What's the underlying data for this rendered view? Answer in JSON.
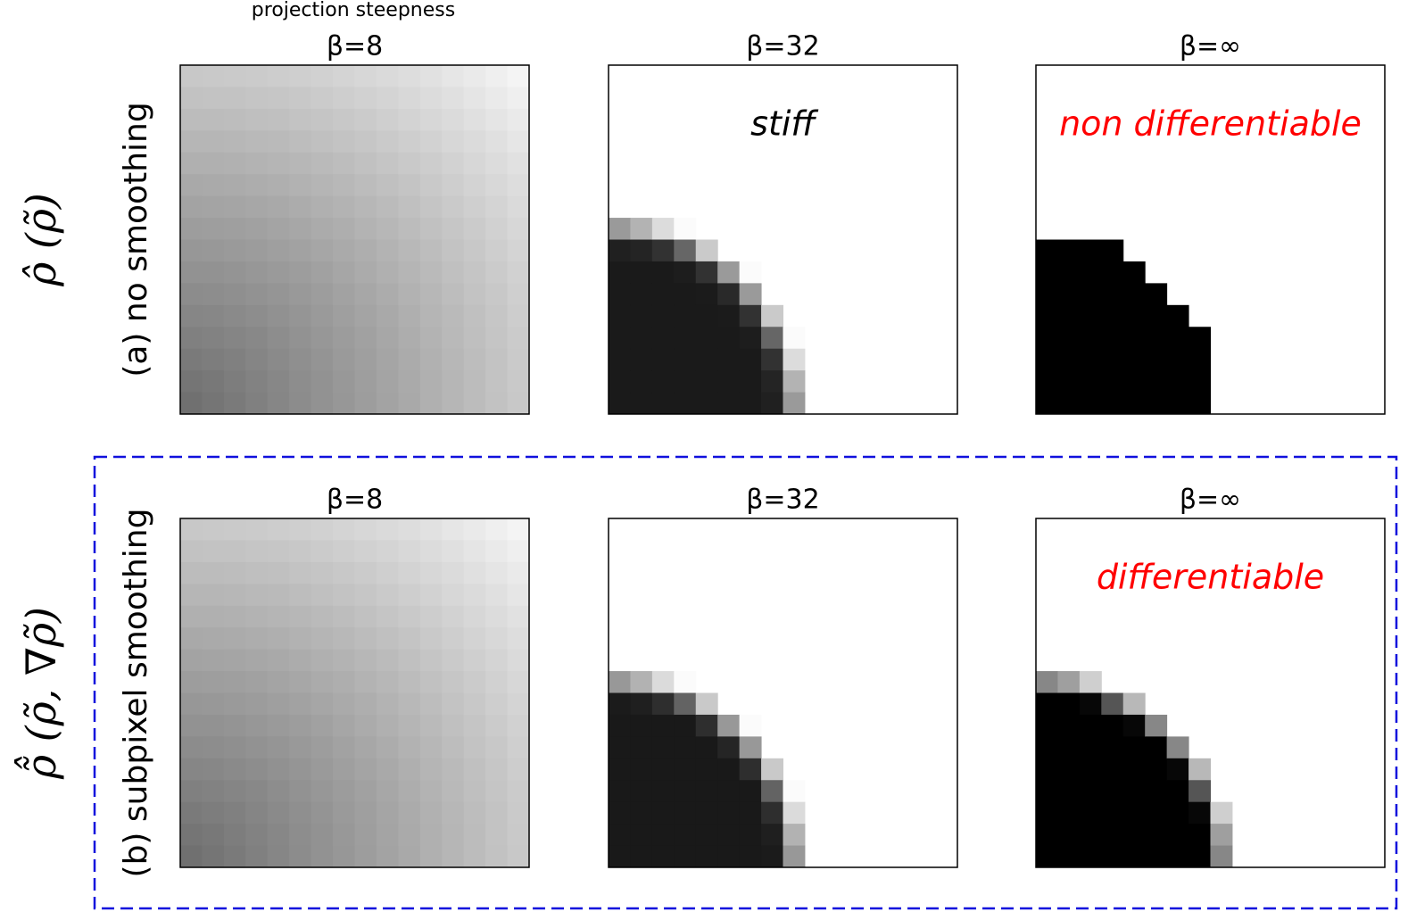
{
  "header": "projection steepness",
  "rows": [
    {
      "label": "(a) no smoothing",
      "symbol": "ρ̂ (ρ̃)",
      "panels": [
        {
          "title": "β=8"
        },
        {
          "title": "β=32",
          "annotation": "stiff"
        },
        {
          "title": "β=∞",
          "annotation": "non differentiable"
        }
      ]
    },
    {
      "label": "(b) subpixel smoothing",
      "symbol": "ρ̃̂ (ρ̃, ∇ρ̃)",
      "panels": [
        {
          "title": "β=8"
        },
        {
          "title": "β=32"
        },
        {
          "title": "β=∞",
          "annotation": "differentiable"
        }
      ]
    }
  ]
}
